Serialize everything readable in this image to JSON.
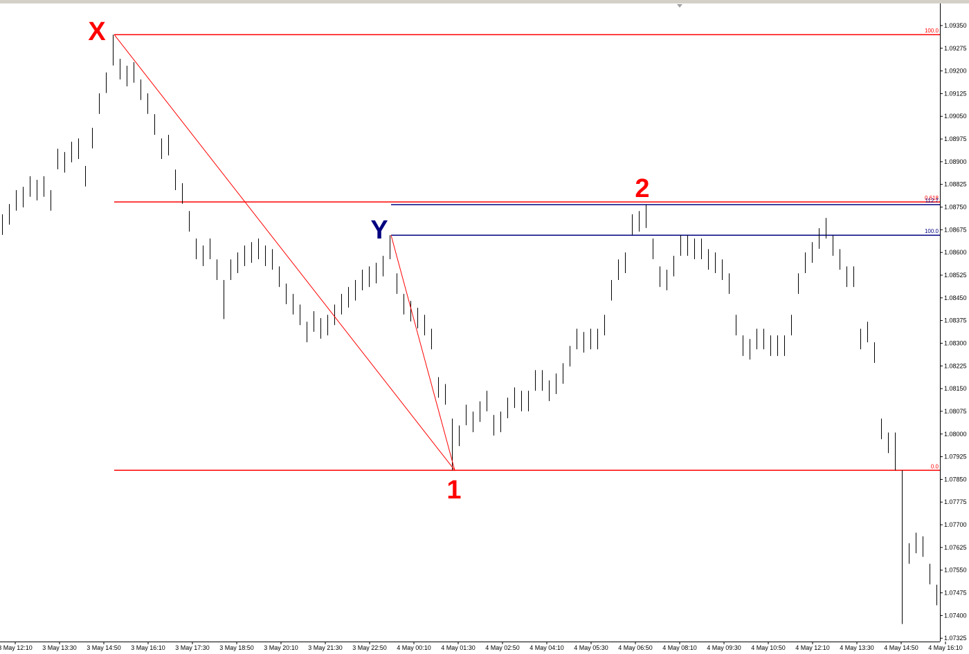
{
  "chart_data": {
    "type": "ohlc",
    "color": "#000000",
    "grid": false,
    "high": [
      1.08726,
      1.0876,
      1.08806,
      1.08817,
      1.08852,
      1.0884,
      1.08852,
      1.08806,
      1.08943,
      1.08932,
      1.08966,
      1.08977,
      1.08886,
      1.09012,
      1.09126,
      1.09195,
      1.0932,
      1.0924,
      1.09217,
      1.09229,
      1.09172,
      1.09126,
      1.09057,
      1.08977,
      1.08989,
      1.08874,
      1.08829,
      1.08737,
      1.08646,
      1.08623,
      1.08646,
      1.08577,
      1.08509,
      1.08577,
      1.086,
      1.08623,
      1.08634,
      1.08646,
      1.08623,
      1.08611,
      1.08554,
      1.08497,
      1.08463,
      1.08428,
      1.08371,
      1.08406,
      1.08383,
      1.08394,
      1.08428,
      1.08463,
      1.08486,
      1.08509,
      1.08543,
      1.08554,
      1.08566,
      1.08589,
      1.08657,
      1.08531,
      1.08463,
      1.0844,
      1.08417,
      1.08394,
      1.08348,
      1.08188,
      1.08165,
      1.08051,
      1.08028,
      1.08097,
      1.08074,
      1.08108,
      1.08143,
      1.08063,
      1.08074,
      1.0812,
      1.08154,
      1.08143,
      1.08143,
      1.08211,
      1.08211,
      1.08177,
      1.082,
      1.08234,
      1.08291,
      1.08348,
      1.08337,
      1.08348,
      1.08348,
      1.08394,
      1.08509,
      1.08577,
      1.086,
      1.08726,
      1.08737,
      1.08758,
      1.08646,
      1.08554,
      1.08543,
      1.08589,
      1.08657,
      1.08657,
      1.08646,
      1.08646,
      1.08611,
      1.086,
      1.08577,
      1.08531,
      1.08394,
      1.08326,
      1.08314,
      1.08348,
      1.08348,
      1.08326,
      1.08326,
      1.08326,
      1.08394,
      1.08531,
      1.086,
      1.08634,
      1.0868,
      1.08714,
      1.08657,
      1.08611,
      1.08554,
      1.08554,
      1.08348,
      1.08371,
      1.08303,
      1.08051,
      1.08005,
      1.08005,
      1.0788,
      1.07639,
      1.07674,
      1.07662,
      1.07571,
      1.07502
    ],
    "low": [
      1.08658,
      1.08692,
      1.08738,
      1.08749,
      1.08784,
      1.08772,
      1.08784,
      1.08738,
      1.08875,
      1.08864,
      1.08898,
      1.08909,
      1.08818,
      1.08944,
      1.09058,
      1.09127,
      1.09218,
      1.09172,
      1.09149,
      1.09161,
      1.09104,
      1.09058,
      1.08989,
      1.08909,
      1.08921,
      1.08806,
      1.08761,
      1.08669,
      1.08578,
      1.08555,
      1.08578,
      1.08509,
      1.0838,
      1.08509,
      1.08532,
      1.08555,
      1.08566,
      1.08578,
      1.08555,
      1.08543,
      1.08486,
      1.08429,
      1.08395,
      1.0836,
      1.08303,
      1.08338,
      1.08315,
      1.08326,
      1.0836,
      1.08395,
      1.08418,
      1.08441,
      1.08475,
      1.08486,
      1.08498,
      1.08521,
      1.08578,
      1.08463,
      1.08395,
      1.08372,
      1.08349,
      1.08326,
      1.0828,
      1.0812,
      1.08097,
      1.0788,
      1.0796,
      1.08029,
      1.08006,
      1.0804,
      1.08075,
      1.07995,
      1.08006,
      1.08052,
      1.08086,
      1.08075,
      1.08075,
      1.08143,
      1.08143,
      1.08109,
      1.08132,
      1.08166,
      1.08223,
      1.0828,
      1.08269,
      1.0828,
      1.0828,
      1.08326,
      1.08441,
      1.08509,
      1.08532,
      1.08658,
      1.08669,
      1.08681,
      1.08578,
      1.08486,
      1.08475,
      1.08521,
      1.08589,
      1.08589,
      1.08578,
      1.08578,
      1.08543,
      1.08532,
      1.08509,
      1.08463,
      1.08326,
      1.08258,
      1.08246,
      1.0828,
      1.0828,
      1.08258,
      1.08258,
      1.08258,
      1.08326,
      1.08463,
      1.08532,
      1.08566,
      1.08612,
      1.08646,
      1.08589,
      1.08543,
      1.08486,
      1.08486,
      1.0828,
      1.08303,
      1.08235,
      1.07983,
      1.07937,
      1.0788,
      1.07372,
      1.07571,
      1.07606,
      1.07594,
      1.07503,
      1.07434
    ],
    "ylim": [
      1.07314,
      1.09423
    ],
    "yticks": [
      {
        "value": 1.07325,
        "label": "1.07325"
      },
      {
        "value": 1.074,
        "label": "1.07400"
      },
      {
        "value": 1.07475,
        "label": "1.07475"
      },
      {
        "value": 1.0755,
        "label": "1.07550"
      },
      {
        "value": 1.07625,
        "label": "1.07625"
      },
      {
        "value": 1.077,
        "label": "1.07700"
      },
      {
        "value": 1.07775,
        "label": "1.07775"
      },
      {
        "value": 1.0785,
        "label": "1.07850"
      },
      {
        "value": 1.07925,
        "label": "1.07925"
      },
      {
        "value": 1.08,
        "label": "1.08000"
      },
      {
        "value": 1.08075,
        "label": "1.08075"
      },
      {
        "value": 1.0815,
        "label": "1.08150"
      },
      {
        "value": 1.08225,
        "label": "1.08225"
      },
      {
        "value": 1.083,
        "label": "1.08300"
      },
      {
        "value": 1.08375,
        "label": "1.08375"
      },
      {
        "value": 1.0845,
        "label": "1.08450"
      },
      {
        "value": 1.08525,
        "label": "1.08525"
      },
      {
        "value": 1.086,
        "label": "1.08600"
      },
      {
        "value": 1.08675,
        "label": "1.08675"
      },
      {
        "value": 1.0875,
        "label": "1.08750"
      },
      {
        "value": 1.08825,
        "label": "1.08825"
      },
      {
        "value": 1.089,
        "label": "1.08900"
      },
      {
        "value": 1.08975,
        "label": "1.08975"
      },
      {
        "value": 1.0905,
        "label": "1.09050"
      },
      {
        "value": 1.09125,
        "label": "1.09125"
      },
      {
        "value": 1.092,
        "label": "1.09200"
      },
      {
        "value": 1.09275,
        "label": "1.09275"
      },
      {
        "value": 1.0935,
        "label": "1.09350"
      }
    ],
    "xtick_labels": [
      "3 May 12:10",
      "3 May 13:30",
      "3 May 14:50",
      "3 May 16:10",
      "3 May 17:30",
      "3 May 18:50",
      "3 May 20:10",
      "3 May 21:30",
      "3 May 22:50",
      "4 May 00:10",
      "4 May 01:30",
      "4 May 02:50",
      "4 May 04:10",
      "4 May 05:30",
      "4 May 06:50",
      "4 May 08:10",
      "4 May 09:30",
      "4 May 10:50",
      "4 May 12:10",
      "4 May 13:30",
      "4 May 14:50",
      "4 May 16:10"
    ],
    "levels": [
      {
        "label": "100.0",
        "value": 1.0932,
        "color": "#ff0000",
        "group": "red"
      },
      {
        "label": "0.618",
        "value": 1.08767,
        "color": "#ff0000",
        "group": "red"
      },
      {
        "label": "0.0",
        "value": 1.0788,
        "color": "#ff0000",
        "group": "red"
      },
      {
        "label": "112.7",
        "value": 1.08758,
        "color": "#000080",
        "group": "blue"
      },
      {
        "label": "100.0",
        "value": 1.08657,
        "color": "#000080",
        "group": "blue"
      }
    ],
    "markers": [
      {
        "label": "X",
        "color": "#ff0000"
      },
      {
        "label": "Y",
        "color": "#000080"
      },
      {
        "label": "1",
        "color": "#ff0000"
      },
      {
        "label": "2",
        "color": "#ff0000"
      }
    ]
  }
}
